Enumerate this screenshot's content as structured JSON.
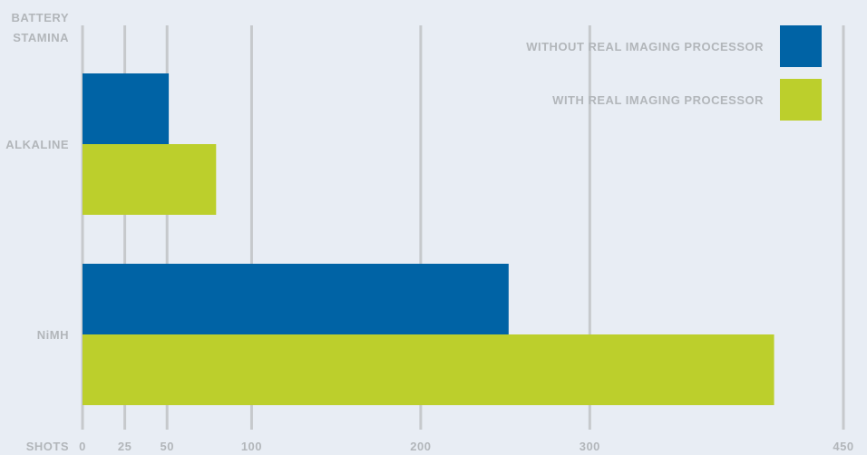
{
  "chart_data": {
    "type": "bar",
    "orientation": "horizontal",
    "title_lines": [
      "BATTERY",
      "STAMINA"
    ],
    "xlabel": "SHOTS",
    "xticks": [
      0,
      25,
      50,
      100,
      200,
      300,
      450
    ],
    "xlim": [
      0,
      450
    ],
    "grid": true,
    "legend_position": "top-right",
    "categories": [
      "ALKALINE",
      "NiMH"
    ],
    "series": [
      {
        "name": "WITHOUT REAL IMAGING PROCESSOR",
        "color": "#0063a5",
        "values": [
          51,
          252
        ]
      },
      {
        "name": "WITH REAL IMAGING PROCESSOR",
        "color": "#bccf2c",
        "values": [
          79,
          409
        ]
      }
    ],
    "colors": {
      "background": "#e8edf4",
      "gridline": "#c6c9cc",
      "text": "#b2b6ba"
    }
  }
}
